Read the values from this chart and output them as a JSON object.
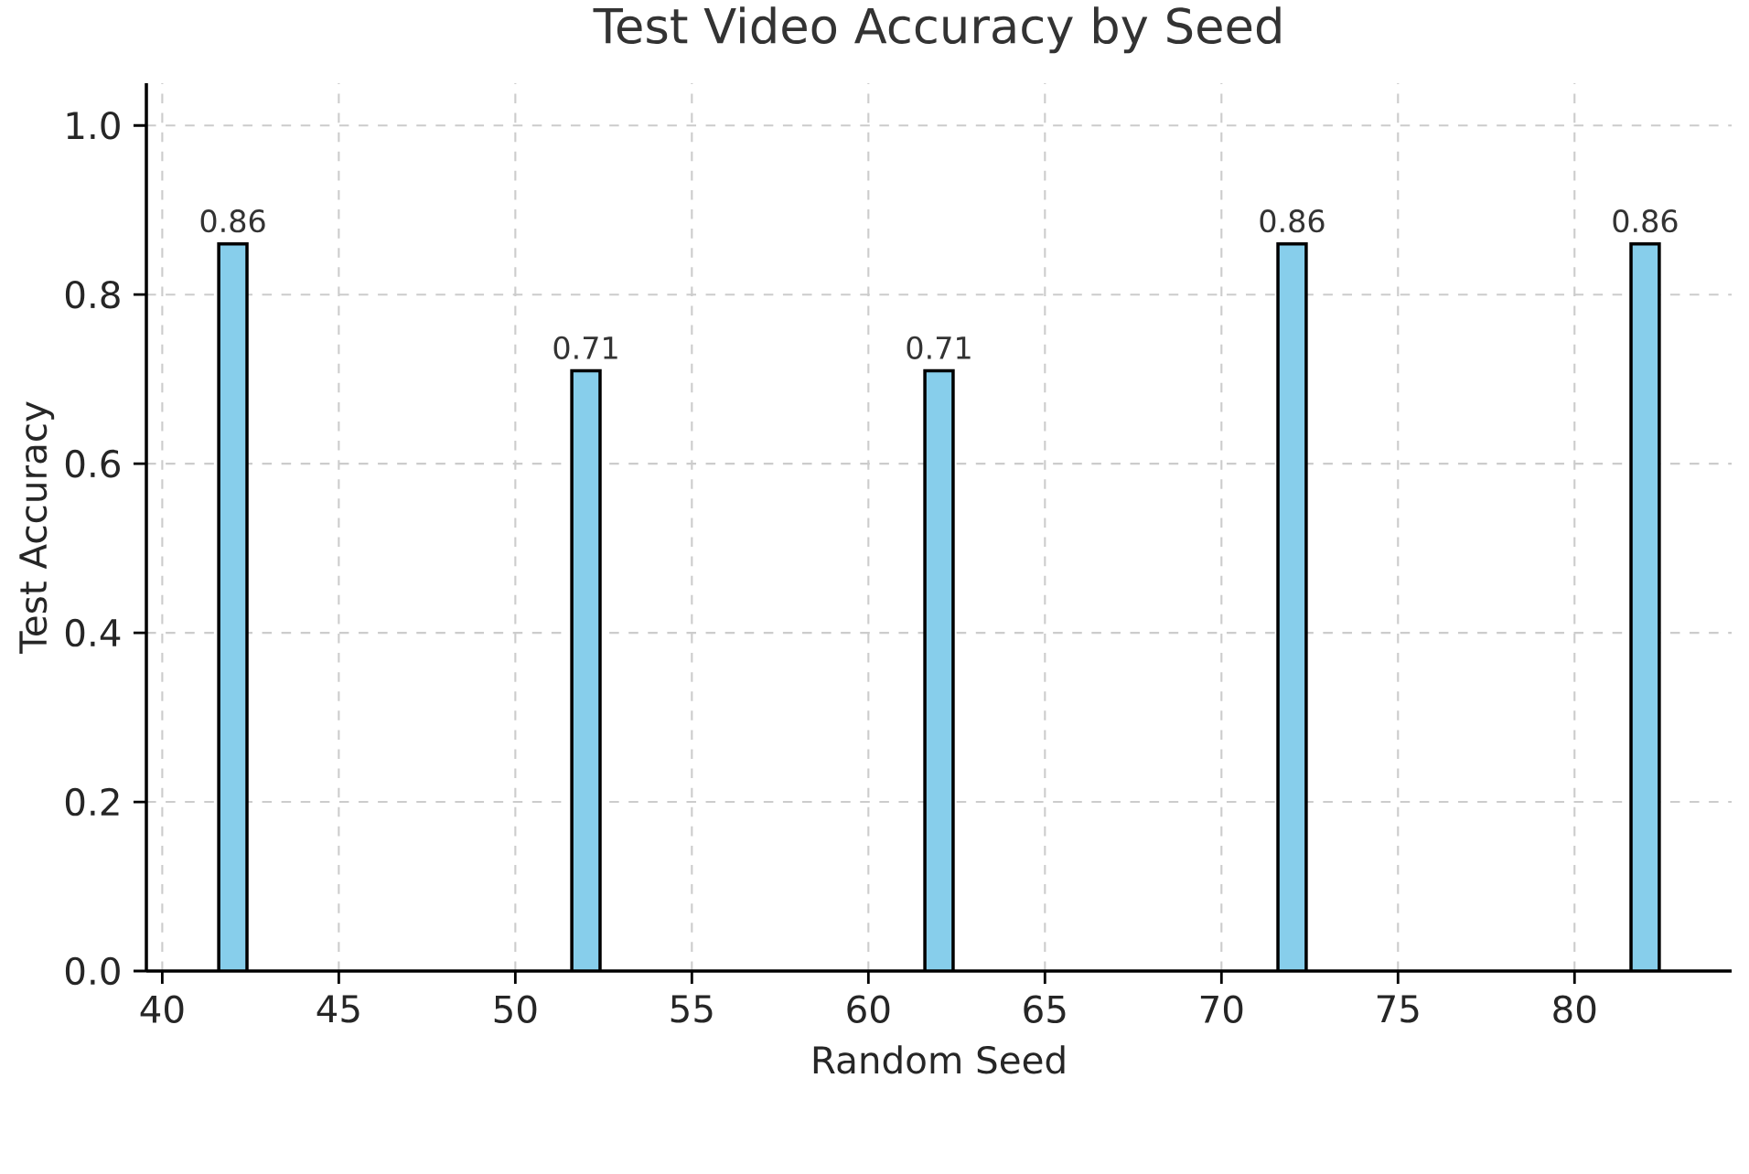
{
  "chart_data": {
    "type": "bar",
    "title": "Test Video Accuracy by Seed",
    "xlabel": "Random Seed",
    "ylabel": "Test Accuracy",
    "x": [
      42,
      52,
      62,
      72,
      82
    ],
    "values": [
      0.86,
      0.71,
      0.71,
      0.86,
      0.86
    ],
    "color": "#87ceeb",
    "xlim": [
      39.55,
      84.45
    ],
    "xticks": [
      40,
      45,
      50,
      55,
      60,
      65,
      70,
      75,
      80
    ],
    "ylim": [
      0,
      1.05
    ],
    "yticks": [
      {
        "value": 0,
        "label": "0.0"
      },
      0.2,
      0.4,
      0.6,
      0.8,
      {
        "value": 1,
        "label": "1.0"
      }
    ],
    "grid": true,
    "data_labels": true
  }
}
